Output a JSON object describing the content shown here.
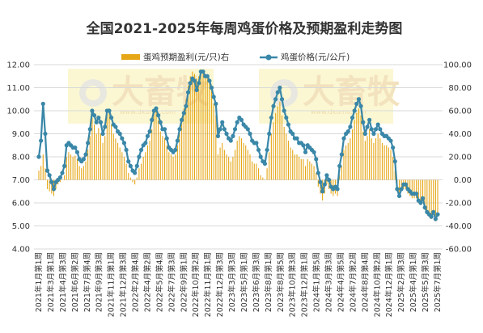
{
  "chart_data": {
    "type": "bar+line",
    "title": "全国2021-2025年每周鸡蛋价格及预期盈利走势图",
    "legend": [
      "蛋鸡预期盈利(元/只)右",
      "鸡蛋价格(元/公斤)"
    ],
    "legend_position": "top",
    "y_left": {
      "min": 4.0,
      "max": 12.0,
      "step": 1.0,
      "ticks": [
        "4.00",
        "5.00",
        "6.00",
        "7.00",
        "8.00",
        "9.00",
        "10.00",
        "11.00",
        "12.00"
      ]
    },
    "y_right": {
      "min": -60,
      "max": 100,
      "step": 20,
      "ticks": [
        "-60.00",
        "-40.00",
        "-20.00",
        "0.00",
        "20.00",
        "40.00",
        "60.00",
        "80.00",
        "100.00"
      ]
    },
    "grid": true,
    "x_tick_labels": [
      "2021年1月第1周",
      "2021年3月第1周",
      "2021年4月第3周",
      "2021年6月第2周",
      "2021年7月第4周",
      "2021年9月第3周",
      "2021年11月第1周",
      "2021年12月第3周",
      "2022年2月第4周",
      "2022年4月第2周",
      "2022年5月第4周",
      "2022年7月第3周",
      "2022年9月第1周",
      "2022年10月第2周",
      "2022年11月第1周",
      "2022年12月第3周",
      "2023年3月第3周",
      "2023年5月第1周",
      "2023年6月第3周",
      "2023年8月第1周",
      "2023年8月第5周",
      "2023年10月第3周",
      "2023年12月第1周",
      "2024年1月第5周",
      "2024年3月第3周",
      "2024年4月第5周",
      "2024年7月第2周",
      "2024年8月第4周",
      "2024年10月第2周",
      "2024年12月第1周",
      "2025年2月第3周",
      "2025年4月第1周",
      "2025年5月第3周",
      "2025年7月第1周"
    ],
    "watermark": "大畜牧",
    "watermark_url": "www.dxumu.com",
    "series": [
      {
        "name": "鸡蛋价格(元/公斤)",
        "axis": "left",
        "color": "#3a87a8",
        "values": [
          8.0,
          8.7,
          10.3,
          9.0,
          7.4,
          7.2,
          6.9,
          6.6,
          6.9,
          7.0,
          7.1,
          7.3,
          7.6,
          8.5,
          8.6,
          8.5,
          8.4,
          8.4,
          8.2,
          7.9,
          7.8,
          7.9,
          8.1,
          8.6,
          9.2,
          10.0,
          9.8,
          9.5,
          9.7,
          9.5,
          9.0,
          9.3,
          10.0,
          10.0,
          9.7,
          9.4,
          9.3,
          9.1,
          9.0,
          8.8,
          8.6,
          8.3,
          7.8,
          7.6,
          7.4,
          7.3,
          7.6,
          8.0,
          8.3,
          8.5,
          8.6,
          8.9,
          9.1,
          9.6,
          10.0,
          10.1,
          9.8,
          9.5,
          9.2,
          9.2,
          8.8,
          8.4,
          8.3,
          8.2,
          8.3,
          8.7,
          9.2,
          9.6,
          9.9,
          10.2,
          10.8,
          11.2,
          11.4,
          11.3,
          10.9,
          11.2,
          11.7,
          11.7,
          11.5,
          11.5,
          11.3,
          11.0,
          10.6,
          10.3,
          8.9,
          9.2,
          9.5,
          9.2,
          9.0,
          8.8,
          8.7,
          8.9,
          9.2,
          9.5,
          9.7,
          9.6,
          9.4,
          9.3,
          9.2,
          9.0,
          8.7,
          8.6,
          8.6,
          8.3,
          8.0,
          7.8,
          7.7,
          8.3,
          9.0,
          9.7,
          10.2,
          10.5,
          10.8,
          11.0,
          10.5,
          10.0,
          9.7,
          9.4,
          9.1,
          9.0,
          8.8,
          8.8,
          8.6,
          8.6,
          8.5,
          8.2,
          8.5,
          8.4,
          8.3,
          8.2,
          7.9,
          7.3,
          6.9,
          6.5,
          6.8,
          7.2,
          7.0,
          6.7,
          6.6,
          6.7,
          6.6,
          7.6,
          8.1,
          8.8,
          9.0,
          9.1,
          9.3,
          9.7,
          10.0,
          10.3,
          10.5,
          10.2,
          9.5,
          9.0,
          9.3,
          9.6,
          9.2,
          9.0,
          9.2,
          9.4,
          9.2,
          9.0,
          8.9,
          8.9,
          8.8,
          8.7,
          8.4,
          7.8,
          6.6,
          6.3,
          6.6,
          6.8,
          6.8,
          6.6,
          6.5,
          6.4,
          6.4,
          6.4,
          6.1,
          6.0,
          6.2,
          5.8,
          5.6,
          5.5,
          5.4,
          5.6,
          5.3,
          5.5
        ]
      },
      {
        "name": "蛋鸡预期盈利(元/只)右",
        "axis": "right",
        "color": "#e6a717",
        "values": [
          8,
          12,
          22,
          10,
          -8,
          -10,
          -12,
          -14,
          -8,
          -4,
          -2,
          0,
          4,
          20,
          24,
          22,
          20,
          21,
          18,
          12,
          10,
          12,
          16,
          26,
          38,
          54,
          48,
          40,
          45,
          40,
          32,
          38,
          58,
          62,
          48,
          40,
          36,
          32,
          28,
          24,
          20,
          14,
          6,
          2,
          -2,
          -4,
          2,
          10,
          14,
          20,
          24,
          30,
          34,
          44,
          58,
          62,
          52,
          42,
          38,
          36,
          30,
          24,
          22,
          20,
          22,
          30,
          40,
          52,
          62,
          70,
          82,
          90,
          94,
          92,
          88,
          90,
          96,
          94,
          92,
          88,
          84,
          78,
          66,
          56,
          22,
          28,
          32,
          26,
          22,
          20,
          16,
          20,
          26,
          34,
          38,
          36,
          32,
          30,
          26,
          22,
          16,
          14,
          14,
          10,
          4,
          2,
          0,
          10,
          24,
          40,
          50,
          58,
          64,
          68,
          56,
          46,
          40,
          34,
          28,
          26,
          22,
          22,
          20,
          18,
          18,
          12,
          18,
          16,
          14,
          12,
          6,
          -6,
          -12,
          -18,
          -12,
          -4,
          -8,
          -12,
          -14,
          -12,
          -14,
          4,
          12,
          26,
          30,
          32,
          36,
          44,
          52,
          58,
          62,
          56,
          42,
          34,
          38,
          44,
          36,
          32,
          36,
          40,
          36,
          32,
          30,
          30,
          28,
          26,
          20,
          8,
          -10,
          -14,
          -10,
          -8,
          -8,
          -12,
          -14,
          -16,
          -16,
          -16,
          -20,
          -22,
          -18,
          -26,
          -30,
          -32,
          -34,
          -30,
          -36,
          -32
        ]
      }
    ]
  }
}
